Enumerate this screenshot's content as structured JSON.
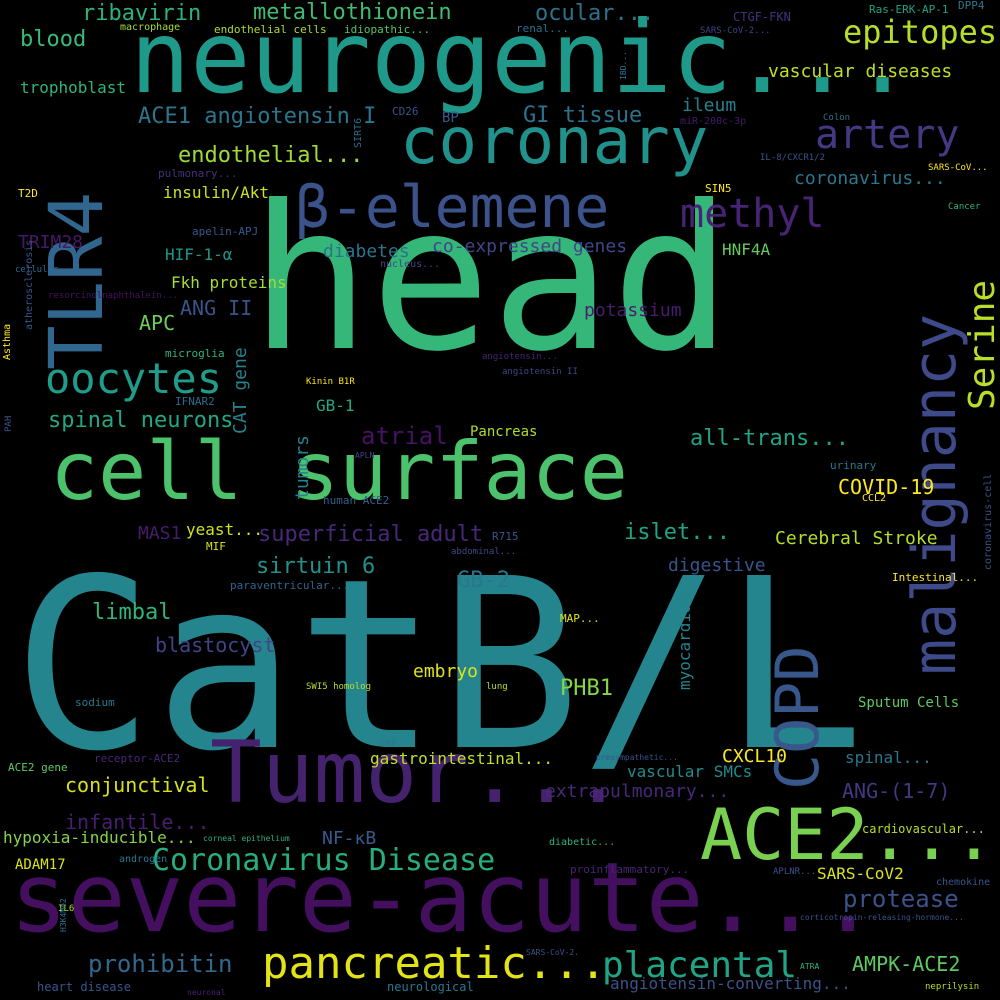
{
  "words": [
    {
      "text": "CatB/L",
      "color": "#25858e"
    },
    {
      "text": "head",
      "color": "#35b779"
    },
    {
      "text": "neurogenic...",
      "color": "#1f9a8a"
    },
    {
      "text": "severe-acute...",
      "color": "#440f5e"
    },
    {
      "text": "cell surface",
      "color": "#4cc26c"
    },
    {
      "text": "Tumor...",
      "color": "#45226e"
    },
    {
      "text": "coronary",
      "color": "#21918c"
    },
    {
      "text": "ACE2...",
      "color": "#7ad151"
    },
    {
      "text": "β-elemene",
      "color": "#3b528b"
    },
    {
      "text": "TLR4",
      "color": "#31668e"
    },
    {
      "text": "malignancy",
      "color": "#3e4a89"
    },
    {
      "text": "COPD",
      "color": "#38588c"
    },
    {
      "text": "pancreatic...",
      "color": "#e2e418"
    },
    {
      "text": "oocytes",
      "color": "#1f9d8a"
    },
    {
      "text": "methyl",
      "color": "#482475"
    },
    {
      "text": "artery",
      "color": "#443983"
    },
    {
      "text": "Serine",
      "color": "#b8de29"
    },
    {
      "text": "epitopes",
      "color": "#b5de2b"
    },
    {
      "text": "placental",
      "color": "#20a486"
    },
    {
      "text": "Coronavirus Disease",
      "color": "#26ad81"
    },
    {
      "text": "metallothionein",
      "color": "#3fbc73"
    },
    {
      "text": "ribavirin",
      "color": "#2db27d"
    },
    {
      "text": "ocular...",
      "color": "#2c728e"
    },
    {
      "text": "blood",
      "color": "#3aba76"
    },
    {
      "text": "ACE1 angiotensin I",
      "color": "#2a768e"
    },
    {
      "text": "GI tissue",
      "color": "#2c718e"
    },
    {
      "text": "trophoblast",
      "color": "#2fb47c"
    },
    {
      "text": "vascular diseases",
      "color": "#c2df23"
    },
    {
      "text": "endothelial...",
      "color": "#a0da39"
    },
    {
      "text": "ileum",
      "color": "#27808e"
    },
    {
      "text": "coronavirus...",
      "color": "#2a788e"
    },
    {
      "text": "insulin/Akt",
      "color": "#cde11d"
    },
    {
      "text": "TRIM28",
      "color": "#481769"
    },
    {
      "text": "diabetes",
      "color": "#2c738e"
    },
    {
      "text": "co-expressed genes",
      "color": "#404688"
    },
    {
      "text": "HIF-1-α",
      "color": "#1f968b"
    },
    {
      "text": "HNF4A",
      "color": "#65cb5e"
    },
    {
      "text": "ANG II",
      "color": "#3b528b"
    },
    {
      "text": "APC",
      "color": "#6ece58"
    },
    {
      "text": "Fkh proteins",
      "color": "#a5db36"
    },
    {
      "text": "potassium",
      "color": "#481c6e"
    },
    {
      "text": "spinal neurons",
      "color": "#22a785"
    },
    {
      "text": "atrial",
      "color": "#471164"
    },
    {
      "text": "all-trans...",
      "color": "#20a386"
    },
    {
      "text": "CAT gene",
      "color": "#25838e"
    },
    {
      "text": "GB-1",
      "color": "#22a884"
    },
    {
      "text": "tumors",
      "color": "#26828e"
    },
    {
      "text": "COVID-19",
      "color": "#fde725"
    },
    {
      "text": "superficial adult",
      "color": "#482878"
    },
    {
      "text": "islet...",
      "color": "#20a486"
    },
    {
      "text": "MAS1",
      "color": "#481a6c"
    },
    {
      "text": "yeast...",
      "color": "#d2e21b"
    },
    {
      "text": "Cerebral Stroke",
      "color": "#b5de2b"
    },
    {
      "text": "sirtuin 6",
      "color": "#21918c"
    },
    {
      "text": "GB-2",
      "color": "#2a768e"
    },
    {
      "text": "digestive",
      "color": "#39558c"
    },
    {
      "text": "limbal",
      "color": "#2fb47c"
    },
    {
      "text": "blastocyst",
      "color": "#414487"
    },
    {
      "text": "myocardial",
      "color": "#25838e"
    },
    {
      "text": "PHB1",
      "color": "#86d549"
    },
    {
      "text": "embryo",
      "color": "#dde318"
    },
    {
      "text": "Sputum Cells",
      "color": "#5ec962"
    },
    {
      "text": "CXCL10",
      "color": "#fde725"
    },
    {
      "text": "conjunctival",
      "color": "#d8e219"
    },
    {
      "text": "gastrointestinal...",
      "color": "#c0df25"
    },
    {
      "text": "vascular SMCs",
      "color": "#238a8d"
    },
    {
      "text": "spinal...",
      "color": "#2a778e"
    },
    {
      "text": "extrapulmonary...",
      "color": "#482979"
    },
    {
      "text": "ANG-(1-7)",
      "color": "#453781"
    },
    {
      "text": "infantile...",
      "color": "#481f70"
    },
    {
      "text": "hypoxia-inducible...",
      "color": "#84d44b"
    },
    {
      "text": "NF-κB",
      "color": "#365c8d"
    },
    {
      "text": "cardiovascular...",
      "color": "#b5de2b"
    },
    {
      "text": "ADAM17",
      "color": "#d8e219"
    },
    {
      "text": "SARS-CoV2",
      "color": "#dde318"
    },
    {
      "text": "protease",
      "color": "#3b528b"
    },
    {
      "text": "prohibitin",
      "color": "#31688e"
    },
    {
      "text": "AMPK-ACE2",
      "color": "#5ec962"
    },
    {
      "text": "heart disease",
      "color": "#39568c"
    },
    {
      "text": "neurological",
      "color": "#2a788e"
    },
    {
      "text": "angiotensin-converting...",
      "color": "#3b528b"
    },
    {
      "text": "macrophage",
      "color": "#a8db34"
    },
    {
      "text": "endothelial cells",
      "color": "#addc30"
    },
    {
      "text": "idiopathic...",
      "color": "#52c569"
    },
    {
      "text": "renal...",
      "color": "#2d708e"
    },
    {
      "text": "SARS-CoV-2...",
      "color": "#414487"
    },
    {
      "text": "CTGF-FKN",
      "color": "#46307e"
    },
    {
      "text": "Ras-ERK-AP-1",
      "color": "#1fa287"
    },
    {
      "text": "DPP4",
      "color": "#2a788e"
    },
    {
      "text": "CD26",
      "color": "#3a548c"
    },
    {
      "text": "BP",
      "color": "#38598c"
    },
    {
      "text": "miR-200c-3p",
      "color": "#481a6c"
    },
    {
      "text": "Colon",
      "color": "#2d718e"
    },
    {
      "text": "IL-8/CXCR1/2",
      "color": "#3b528b"
    },
    {
      "text": "SARS-CoV...",
      "color": "#fde725"
    },
    {
      "text": "SIRT6",
      "color": "#2e6e8e"
    },
    {
      "text": "pulmonary...",
      "color": "#472e7c"
    },
    {
      "text": "apelin-APJ",
      "color": "#38598c"
    },
    {
      "text": "SIN5",
      "color": "#fde725"
    },
    {
      "text": "T2D",
      "color": "#fde725"
    },
    {
      "text": "Cancer",
      "color": "#2db27d"
    },
    {
      "text": "cellular",
      "color": "#31688e"
    },
    {
      "text": "nucleus...",
      "color": "#414487"
    },
    {
      "text": "resorcinolnaphthalein...",
      "color": "#471063"
    },
    {
      "text": "microglia",
      "color": "#2fb47c"
    },
    {
      "text": "angiotensin...",
      "color": "#482475"
    },
    {
      "text": "angiotensin II",
      "color": "#414487"
    },
    {
      "text": "Kinin B1R",
      "color": "#fde725"
    },
    {
      "text": "IFNAR2",
      "color": "#306a8e"
    },
    {
      "text": "Asthma",
      "color": "#fde725"
    },
    {
      "text": "atherosclerosis",
      "color": "#39568c"
    },
    {
      "text": "PAH",
      "color": "#3b528b"
    },
    {
      "text": "Pancreas",
      "color": "#addc30"
    },
    {
      "text": "APLN",
      "color": "#3e4a89"
    },
    {
      "text": "urinary",
      "color": "#2a788e"
    },
    {
      "text": "CCL2",
      "color": "#fde725"
    },
    {
      "text": "human ACE2",
      "color": "#355f8d"
    },
    {
      "text": "R715",
      "color": "#39568c"
    },
    {
      "text": "abdominal...",
      "color": "#3e4989"
    },
    {
      "text": "MIF",
      "color": "#dde318"
    },
    {
      "text": "paraventricular...",
      "color": "#33638d"
    },
    {
      "text": "Intestinal...",
      "color": "#fde725"
    },
    {
      "text": "coronavirus-cell",
      "color": "#3b528b"
    },
    {
      "text": "MAP...",
      "color": "#dde318"
    },
    {
      "text": "sodium",
      "color": "#2a788e"
    },
    {
      "text": "SWI5 homolog",
      "color": "#b5de2b"
    },
    {
      "text": "lung",
      "color": "#b5de2b"
    },
    {
      "text": "cGMP",
      "color": "#2c718e"
    },
    {
      "text": "presympathetic...",
      "color": "#3b528b"
    },
    {
      "text": "receptor-ACE2",
      "color": "#482777"
    },
    {
      "text": "ACE2 gene",
      "color": "#5ec962"
    },
    {
      "text": "corneal epithelium",
      "color": "#2db27d"
    },
    {
      "text": "diabetic...",
      "color": "#2fb47c"
    },
    {
      "text": "androgen",
      "color": "#2a788e"
    },
    {
      "text": "proinflammatory...",
      "color": "#482475"
    },
    {
      "text": "APLNR...",
      "color": "#3b528b"
    },
    {
      "text": "chemokine",
      "color": "#39568c"
    },
    {
      "text": "corticotropin-releasing-hormone...",
      "color": "#3b528b"
    },
    {
      "text": "IL6",
      "color": "#b5de2b"
    },
    {
      "text": "H3K4Me2",
      "color": "#2c718e"
    },
    {
      "text": "SARS-CoV-2.",
      "color": "#3b528b"
    },
    {
      "text": "ATRA",
      "color": "#2fb47c"
    },
    {
      "text": "neuronal",
      "color": "#482173"
    },
    {
      "text": "neprilysin",
      "color": "#b5de2b"
    },
    {
      "text": "IBD...",
      "color": "#2c718e"
    }
  ]
}
